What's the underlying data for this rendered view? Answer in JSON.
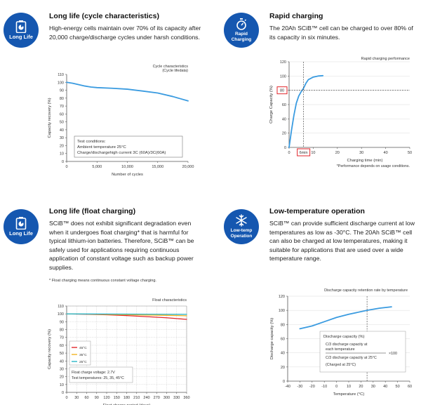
{
  "sections": {
    "cycle": {
      "icon_label": "Long Life",
      "icon_name": "battery-icon",
      "title": "Long life (cycle characteristics)",
      "body": "High-energy cells maintain over 70% of its capacity after 20,000 charge/discharge cycles under harsh conditions."
    },
    "rapid": {
      "icon_label_1": "Rapid",
      "icon_label_2": "Charging",
      "icon_name": "stopwatch-icon",
      "title": "Rapid charging",
      "body": "The 20Ah SCiB™ cell can be charged to over 80% of its capacity in six minutes."
    },
    "float": {
      "icon_label": "Long Life",
      "icon_name": "battery-icon",
      "title": "Long life (float charging)",
      "body": "SCiB™ does not exhibit significant degradation even when it undergoes float charging* that is harmful for typical lithium-ion batteries. Therefore, SCiB™ can be safely used for applications requiring continuous application of constant voltage such as backup power supplies.",
      "footnote": "* Float charging means continuous constant voltage charging."
    },
    "lowtemp": {
      "icon_label_1": "Low-temp",
      "icon_label_2": "Operation",
      "icon_name": "snowflake-icon",
      "title": "Low-temperature operation",
      "body": "SCiB™ can provide sufficient discharge current at low temperatures as low as -30°C. The 20Ah SCiB™ cell can also be charged at low temperatures, making it suitable for applications that are used over a wide temperature range."
    }
  },
  "chart_data": [
    {
      "id": "cycle",
      "type": "line",
      "title": "Cycle characteristics",
      "subtitle": "(Cycle lifedata)",
      "xlabel": "Number of cycles",
      "ylabel": "Capacity recovery (%)",
      "xlim": [
        0,
        20000
      ],
      "ylim": [
        0,
        110
      ],
      "xticks": [
        0,
        5000,
        10000,
        15000,
        20000
      ],
      "xtick_labels": [
        "0",
        "5,000",
        "10,000",
        "15,000",
        "20,000"
      ],
      "yticks": [
        0,
        10,
        20,
        30,
        40,
        50,
        60,
        70,
        80,
        90,
        100,
        110
      ],
      "series": [
        {
          "name": "Capacity recovery",
          "color": "#3a9be0",
          "x": [
            0,
            1000,
            2000,
            3000,
            4000,
            5000,
            7500,
            10000,
            12500,
            15000,
            17500,
            20000
          ],
          "y": [
            100,
            98.8,
            97,
            95.3,
            94,
            93.3,
            92.5,
            91.3,
            89,
            86.5,
            82,
            76.5
          ]
        }
      ],
      "conditions_title": "Test conditions:",
      "conditions_1": "Ambient temperature  25°C",
      "conditions_2": "Charge/dischargehigh current 3C (60A)/3C(60A)"
    },
    {
      "id": "rapid",
      "type": "line",
      "title": "Rapid charging performance",
      "xlabel": "Charging time (min)",
      "ylabel": "Charge Capacity (%)",
      "xlim": [
        0,
        50
      ],
      "ylim": [
        0,
        120
      ],
      "xticks": [
        0,
        10,
        20,
        30,
        40,
        50
      ],
      "yticks": [
        0,
        20,
        40,
        60,
        80,
        100,
        120
      ],
      "series": [
        {
          "name": "Charge capacity",
          "color": "#3a9be0",
          "x": [
            0,
            1,
            2,
            3,
            4,
            5,
            6,
            7,
            8,
            10,
            12,
            14
          ],
          "y": [
            0,
            24,
            45,
            62,
            72,
            78,
            83,
            90,
            95,
            98.5,
            100,
            100.5
          ]
        }
      ],
      "marker_x_label": "6min",
      "marker_y_label": "80",
      "marker_x": 6,
      "marker_y": 80,
      "footnote": "*Performance depends on usage conditions."
    },
    {
      "id": "float",
      "type": "line",
      "title": "Float characteristics",
      "xlabel": "Float charge period (days)",
      "ylabel": "Capacity recovery (%)",
      "xlim": [
        0,
        360
      ],
      "ylim": [
        0,
        110
      ],
      "xticks": [
        0,
        30,
        60,
        90,
        120,
        150,
        180,
        210,
        240,
        270,
        300,
        330,
        360
      ],
      "yticks": [
        0,
        10,
        20,
        30,
        40,
        50,
        60,
        70,
        80,
        90,
        100,
        110
      ],
      "series": [
        {
          "name": "45°C",
          "color": "#e0262b",
          "x": [
            0,
            60,
            120,
            180,
            240,
            300,
            360
          ],
          "y": [
            100,
            99.5,
            98.8,
            97.8,
            96.5,
            95,
            93
          ]
        },
        {
          "name": "35°C",
          "color": "#f2b321",
          "x": [
            0,
            60,
            120,
            180,
            240,
            300,
            360
          ],
          "y": [
            100,
            99.7,
            99.3,
            98.9,
            98.5,
            98.1,
            97.6
          ]
        },
        {
          "name": "25°C",
          "color": "#2ab5c8",
          "x": [
            0,
            60,
            120,
            180,
            240,
            300,
            360
          ],
          "y": [
            100,
            99.9,
            99.8,
            99.7,
            99.6,
            99.5,
            99.4
          ]
        }
      ],
      "conditions_1": "Float charge voltage: 2.7V",
      "conditions_2": "Test temperatures: 25, 35, 45°C"
    },
    {
      "id": "lowtemp",
      "type": "line",
      "title": "Discharge capacity retention rate by temperature",
      "xlabel": "Temperature (°C)",
      "ylabel": "Discharge capacity (%)",
      "xlim": [
        -40,
        60
      ],
      "ylim": [
        0,
        120
      ],
      "xticks": [
        -40,
        -30,
        -20,
        -10,
        0,
        10,
        20,
        30,
        40,
        50,
        60
      ],
      "yticks": [
        0,
        20,
        40,
        60,
        80,
        100,
        120
      ],
      "series": [
        {
          "name": "Discharge capacity",
          "color": "#3a9be0",
          "x": [
            -30,
            -20,
            -10,
            0,
            10,
            25,
            35,
            45
          ],
          "y": [
            74,
            78,
            84,
            90,
            94.5,
            100,
            103,
            105
          ]
        }
      ],
      "legend_title": "Discharge capacity (%)",
      "formula_1": "C/3 discharge capacity at",
      "formula_2": "each temperature",
      "formula_3": "C/3 discharge capacity at 25°C",
      "formula_4": "(Charged at 25°C)",
      "formula_mult": "×100"
    }
  ]
}
